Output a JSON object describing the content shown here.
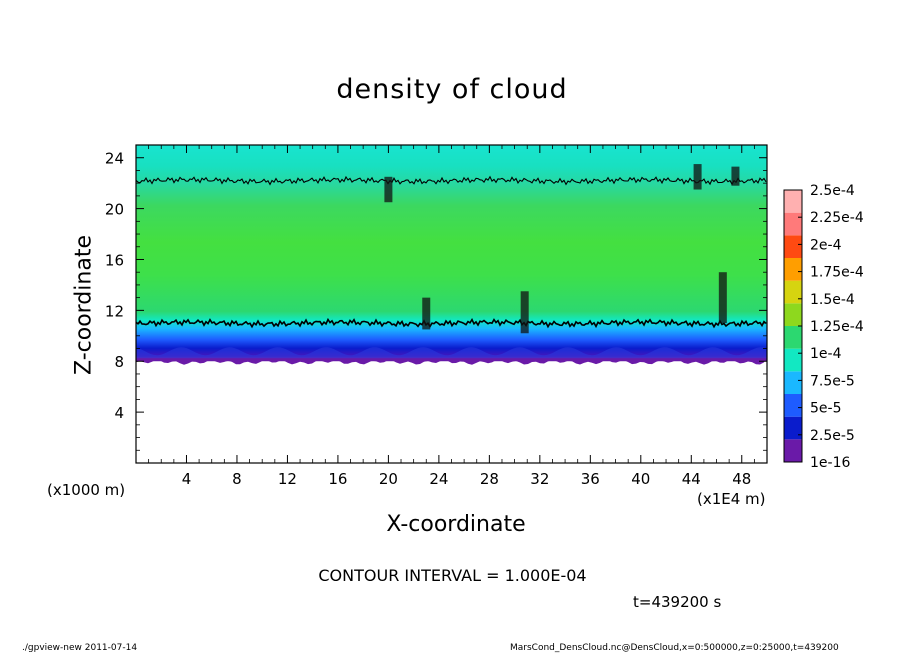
{
  "chart_data": {
    "type": "heatmap",
    "title": "density of cloud",
    "xlabel": "X-coordinate",
    "ylabel": "Z-coordinate",
    "x_unit": "(x1E4 m)",
    "y_unit": "(x1000 m)",
    "xlim": [
      0,
      50
    ],
    "ylim": [
      0,
      25
    ],
    "x_ticks": [
      4,
      8,
      12,
      16,
      20,
      24,
      28,
      32,
      36,
      40,
      44,
      48
    ],
    "y_ticks": [
      4,
      8,
      12,
      16,
      20,
      24
    ],
    "cloud_layer_z": [
      8,
      24
    ],
    "contour_lines_z": [
      11,
      22.2
    ],
    "colorbar": {
      "labels": [
        "1e-16",
        "2.5e-5",
        "5e-5",
        "7.5e-5",
        "1e-4",
        "1.25e-4",
        "1.5e-4",
        "1.75e-4",
        "2e-4",
        "2.25e-4",
        "2.5e-4"
      ],
      "colors": [
        "#6a1aa8",
        "#0a1ccc",
        "#1e5cff",
        "#1ab8ff",
        "#12e8c2",
        "#2cd870",
        "#8ed81e",
        "#d6d410",
        "#ff9e00",
        "#ff4a12",
        "#ff7a7a",
        "#ffb0b0"
      ]
    },
    "contour_interval": "CONTOUR INTERVAL = 1.000E-04",
    "time_label": "t=439200 s"
  },
  "footer": {
    "left": "./gpview-new  2011-07-14",
    "right": "MarsCond_DensCloud.nc@DensCloud,x=0:500000,z=0:25000,t=439200"
  }
}
